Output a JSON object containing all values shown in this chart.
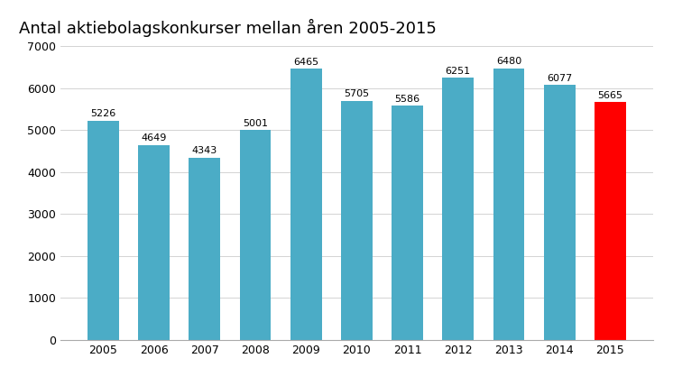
{
  "title": "Antal aktiebolagskonkurser mellan åren 2005-2015",
  "categories": [
    "2005",
    "2006",
    "2007",
    "2008",
    "2009",
    "2010",
    "2011",
    "2012",
    "2013",
    "2014",
    "2015"
  ],
  "values": [
    5226,
    4649,
    4343,
    5001,
    6465,
    5705,
    5586,
    6251,
    6480,
    6077,
    5665
  ],
  "bar_colors": [
    "#4BACC6",
    "#4BACC6",
    "#4BACC6",
    "#4BACC6",
    "#4BACC6",
    "#4BACC6",
    "#4BACC6",
    "#4BACC6",
    "#4BACC6",
    "#4BACC6",
    "#FF0000"
  ],
  "ylim": [
    0,
    7000
  ],
  "yticks": [
    0,
    1000,
    2000,
    3000,
    4000,
    5000,
    6000,
    7000
  ],
  "title_fontsize": 13,
  "label_fontsize": 8,
  "tick_fontsize": 9,
  "background_color": "#FFFFFF",
  "bar_width": 0.62
}
